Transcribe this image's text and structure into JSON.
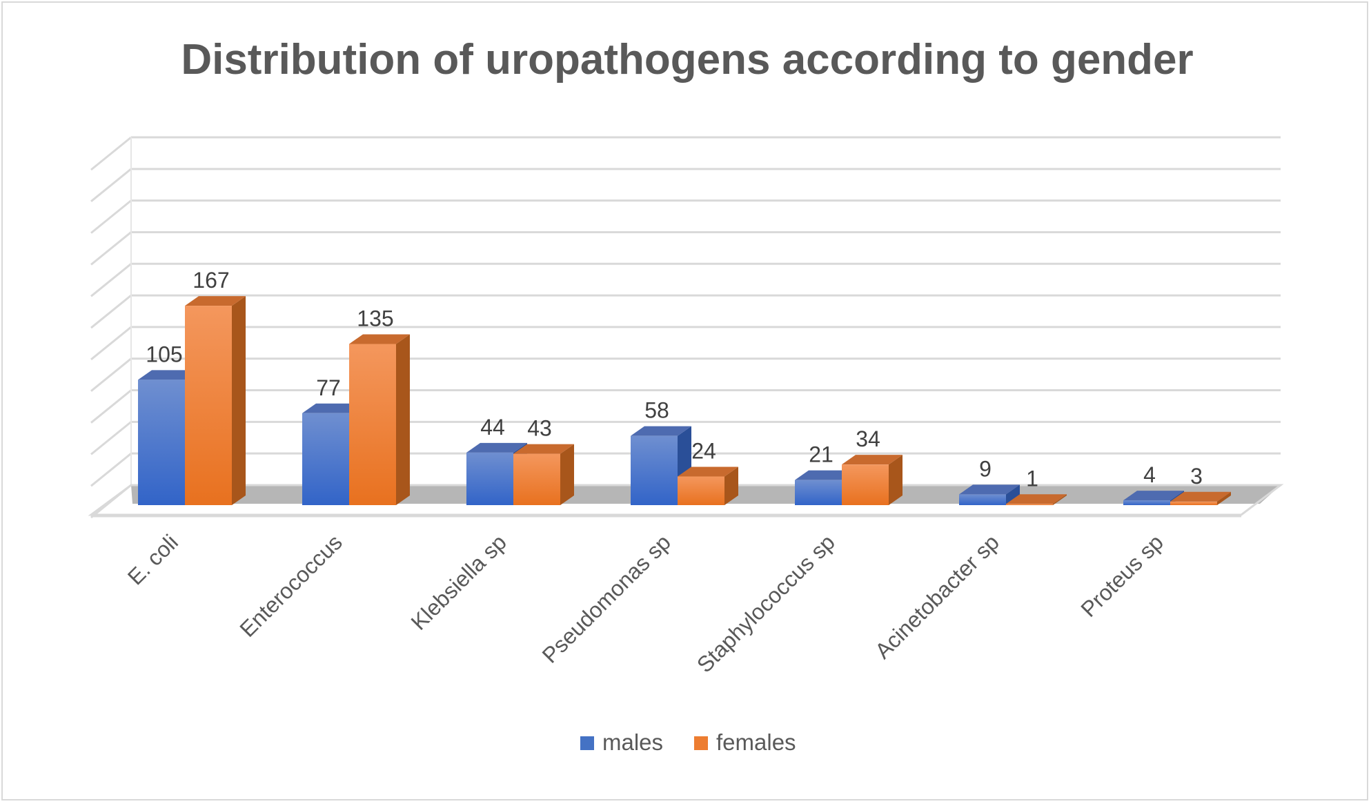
{
  "chart_data": {
    "type": "bar",
    "title": "Distribution of uropathogens according to gender",
    "categories": [
      "E. coli",
      "Enterococcus",
      "Klebsiella sp",
      "Pseudomonas sp",
      "Staphylococcus sp",
      "Acinetobacter sp",
      "Proteus sp"
    ],
    "series": [
      {
        "name": "males",
        "values": [
          105,
          77,
          44,
          58,
          21,
          9,
          4
        ],
        "color": "#4472c4"
      },
      {
        "name": "females",
        "values": [
          167,
          135,
          43,
          24,
          34,
          1,
          3
        ],
        "color": "#ed7d31"
      }
    ],
    "ylim": [
      0,
      180
    ],
    "grid": true,
    "legend_position": "bottom",
    "style": "3d-clustered-column"
  }
}
